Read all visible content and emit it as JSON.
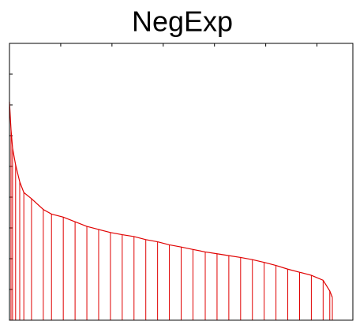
{
  "chart_data": {
    "type": "stem",
    "title": "NegExp",
    "color": "#e00000",
    "x": [
      0,
      3,
      6,
      12,
      20,
      28,
      43,
      66,
      82,
      105,
      128,
      151,
      174,
      197,
      220,
      243,
      266,
      289,
      312,
      335,
      358,
      382,
      405,
      428,
      451,
      474,
      497,
      520,
      543,
      566,
      589,
      612,
      625,
      630
    ],
    "values": [
      7.1,
      6.2,
      5.6,
      5.05,
      4.5,
      4.15,
      3.95,
      3.6,
      3.45,
      3.35,
      3.2,
      3.05,
      2.95,
      2.85,
      2.78,
      2.72,
      2.62,
      2.55,
      2.45,
      2.38,
      2.3,
      2.22,
      2.16,
      2.1,
      2.04,
      1.97,
      1.88,
      1.78,
      1.66,
      1.56,
      1.46,
      1.3,
      0.95,
      0.74
    ],
    "xlim": [
      0,
      670
    ],
    "xticks": [
      100,
      200,
      300,
      400,
      500,
      600
    ],
    "ylim": [
      0,
      9
    ],
    "yticks": [
      1,
      2,
      3,
      4,
      5,
      6,
      7,
      8
    ]
  }
}
